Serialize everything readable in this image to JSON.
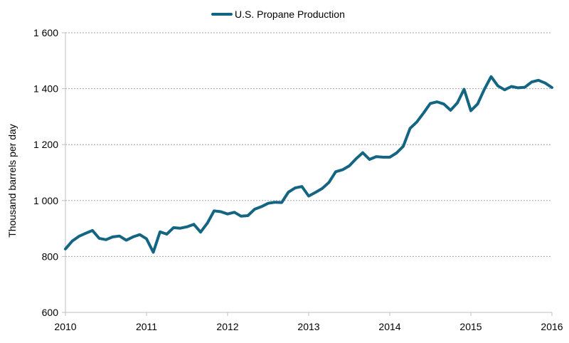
{
  "chart_data": {
    "type": "line",
    "title": "",
    "xlabel": "",
    "ylabel": "Thousand  barrels per day",
    "xlim": [
      2010,
      2016
    ],
    "ylim": [
      600,
      1600
    ],
    "x_ticks": [
      "2010",
      "2011",
      "2012",
      "2013",
      "2014",
      "2015",
      "2016"
    ],
    "y_ticks": [
      "600",
      "800",
      "1 000",
      "1 200",
      "1 400",
      "1 600"
    ],
    "y_tick_values": [
      600,
      800,
      1000,
      1200,
      1400,
      1600
    ],
    "grid": "horizontal-dotted",
    "legend_position": "top-center",
    "series": [
      {
        "name": "U.S. Propane Production",
        "color": "#146582",
        "x": [
          2010.0,
          2010.083,
          2010.167,
          2010.25,
          2010.333,
          2010.417,
          2010.5,
          2010.583,
          2010.667,
          2010.75,
          2010.833,
          2010.917,
          2011.0,
          2011.083,
          2011.167,
          2011.25,
          2011.333,
          2011.417,
          2011.5,
          2011.583,
          2011.667,
          2011.75,
          2011.833,
          2011.917,
          2012.0,
          2012.083,
          2012.167,
          2012.25,
          2012.333,
          2012.417,
          2012.5,
          2012.583,
          2012.667,
          2012.75,
          2012.833,
          2012.917,
          2013.0,
          2013.083,
          2013.167,
          2013.25,
          2013.333,
          2013.417,
          2013.5,
          2013.583,
          2013.667,
          2013.75,
          2013.833,
          2013.917,
          2014.0,
          2014.083,
          2014.167,
          2014.25,
          2014.333,
          2014.417,
          2014.5,
          2014.583,
          2014.667,
          2014.75,
          2014.833,
          2014.917,
          2015.0,
          2015.083,
          2015.167,
          2015.25,
          2015.333,
          2015.417,
          2015.5,
          2015.583,
          2015.667,
          2015.75,
          2015.833,
          2015.917,
          2016.0
        ],
        "y": [
          827,
          855,
          872,
          883,
          893,
          865,
          860,
          870,
          873,
          858,
          870,
          878,
          863,
          815,
          888,
          880,
          903,
          901,
          906,
          915,
          887,
          919,
          963,
          960,
          952,
          958,
          944,
          946,
          969,
          978,
          990,
          994,
          993,
          1030,
          1045,
          1050,
          1016,
          1029,
          1043,
          1065,
          1103,
          1110,
          1124,
          1149,
          1171,
          1147,
          1157,
          1155,
          1155,
          1170,
          1194,
          1258,
          1281,
          1313,
          1347,
          1353,
          1345,
          1323,
          1349,
          1398,
          1321,
          1345,
          1398,
          1443,
          1410,
          1396,
          1408,
          1403,
          1405,
          1424,
          1430,
          1420,
          1404
        ]
      }
    ]
  }
}
